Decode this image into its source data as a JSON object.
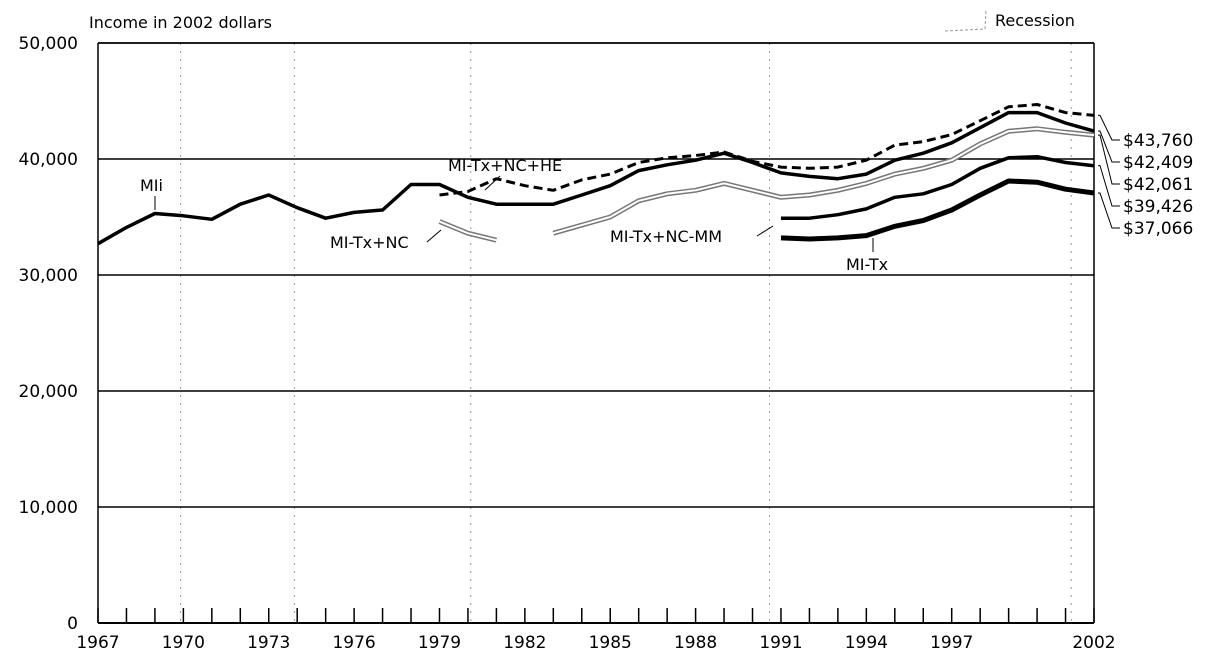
{
  "chart_data": {
    "type": "line",
    "ylabel": "Income in 2002 dollars",
    "ylim": [
      0,
      50000
    ],
    "xlim": [
      1967,
      2002
    ],
    "y_ticks": [
      {
        "value": 0,
        "label": "0"
      },
      {
        "value": 10000,
        "label": "10,000"
      },
      {
        "value": 20000,
        "label": "20,000"
      },
      {
        "value": 30000,
        "label": "30,000"
      },
      {
        "value": 40000,
        "label": "40,000"
      },
      {
        "value": 50000,
        "label": "50,000"
      }
    ],
    "x_ticks": [
      {
        "value": 1967,
        "label": "1967"
      },
      {
        "value": 1970,
        "label": "1970"
      },
      {
        "value": 1973,
        "label": "1973"
      },
      {
        "value": 1976,
        "label": "1976"
      },
      {
        "value": 1979,
        "label": "1979"
      },
      {
        "value": 1982,
        "label": "1982"
      },
      {
        "value": 1985,
        "label": "1985"
      },
      {
        "value": 1988,
        "label": "1988"
      },
      {
        "value": 1991,
        "label": "1991"
      },
      {
        "value": 1994,
        "label": "1994"
      },
      {
        "value": 1997,
        "label": "1997"
      },
      {
        "value": 2002,
        "label": "2002"
      }
    ],
    "legend": {
      "label": "Recession",
      "position": "top-right"
    },
    "grid": "horizontal",
    "recession_lines": [
      1969.9,
      1973.9,
      1980.1,
      1990.6,
      2001.2
    ],
    "series": [
      {
        "name": "MIi",
        "color": "#000000",
        "style": "solid",
        "x": [
          1967,
          1968,
          1969,
          1970,
          1971,
          1972,
          1973,
          1974,
          1975,
          1976,
          1977,
          1978,
          1979,
          1980,
          1981,
          1982,
          1983,
          1984,
          1985,
          1986,
          1987,
          1988,
          1989,
          1990,
          1991,
          1992,
          1993,
          1994,
          1995,
          1996,
          1997,
          1998,
          1999,
          2000,
          2001,
          2002
        ],
        "values": [
          32700,
          34100,
          35300,
          35100,
          34800,
          36100,
          36900,
          35800,
          34900,
          35400,
          35600,
          37800,
          37800,
          36700,
          36100,
          36100,
          36100,
          36900,
          37700,
          39000,
          39500,
          39900,
          40500,
          39700,
          38800,
          38500,
          38300,
          38700,
          39900,
          40500,
          41400,
          42700,
          44000,
          44000,
          43100,
          42409
        ]
      },
      {
        "name": "MI-Tx+NC+HE",
        "color": "#000000",
        "style": "dashed",
        "x": [
          1979,
          1980,
          1981,
          1982,
          1983,
          1984,
          1985,
          1986,
          1987,
          1988,
          1989,
          1990,
          1991,
          1992,
          1993,
          1994,
          1995,
          1996,
          1997,
          1998,
          1999,
          2000,
          2001,
          2002
        ],
        "values": [
          36900,
          37200,
          38300,
          37700,
          37300,
          38200,
          38700,
          39700,
          40100,
          40300,
          40600,
          39800,
          39300,
          39200,
          39300,
          39900,
          41200,
          41500,
          42100,
          43300,
          44500,
          44700,
          44000,
          43760
        ]
      },
      {
        "name": "MI-Tx+NC",
        "color": "#888888",
        "style": "double",
        "x": [
          1979,
          1980,
          1981,
          null,
          1983,
          1984,
          1985,
          1986,
          1987,
          1988,
          1989,
          1990,
          1991,
          1992,
          1993,
          1994,
          1995,
          1996,
          1997,
          1998,
          1999,
          2000,
          2001,
          2002
        ],
        "values": [
          34600,
          33600,
          33000,
          null,
          33600,
          34300,
          35000,
          36400,
          37000,
          37300,
          37900,
          37300,
          36700,
          36900,
          37300,
          37900,
          38700,
          39200,
          39900,
          41300,
          42400,
          42600,
          42300,
          42061
        ]
      },
      {
        "name": "MI-Tx+NC-MM",
        "color": "#000000",
        "style": "solid",
        "x": [
          1991,
          1992,
          1993,
          1994,
          1995,
          1996,
          1997,
          1998,
          1999,
          2000,
          2001,
          2002
        ],
        "values": [
          34900,
          34900,
          35200,
          35700,
          36700,
          37000,
          37800,
          39200,
          40100,
          40200,
          39700,
          39426
        ]
      },
      {
        "name": "MI-Tx",
        "color": "#000000",
        "style": "solid-thick",
        "x": [
          1991,
          1992,
          1993,
          1994,
          1995,
          1996,
          1997,
          1998,
          1999,
          2000,
          2001,
          2002
        ],
        "values": [
          33200,
          33100,
          33200,
          33400,
          34200,
          34700,
          35600,
          36900,
          38100,
          38000,
          37400,
          37066
        ]
      }
    ],
    "end_labels": [
      {
        "label": "$43,760",
        "value": 43760
      },
      {
        "label": "$42,409",
        "value": 42409
      },
      {
        "label": "$42,061",
        "value": 42061
      },
      {
        "label": "$39,426",
        "value": 39426
      },
      {
        "label": "$37,066",
        "value": 37066
      }
    ]
  }
}
